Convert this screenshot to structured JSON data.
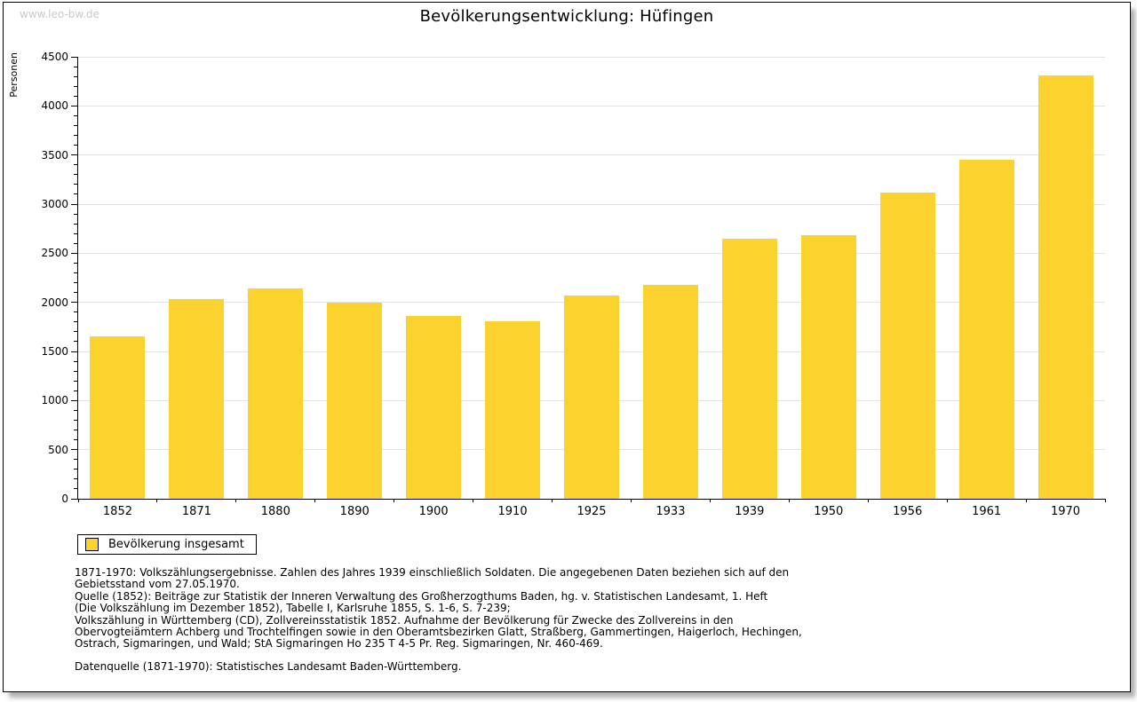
{
  "watermark": "www.leo-bw.de",
  "header": {
    "title": "Bevölkerungsentwicklung: Hüfingen"
  },
  "chart_data": {
    "type": "bar",
    "title": "Bevölkerungsentwicklung: Hüfingen",
    "xlabel": "",
    "ylabel": "Personen",
    "categories": [
      "1852",
      "1871",
      "1880",
      "1890",
      "1900",
      "1910",
      "1925",
      "1933",
      "1939",
      "1950",
      "1956",
      "1961",
      "1970"
    ],
    "values": [
      1650,
      2030,
      2140,
      1995,
      1860,
      1805,
      2065,
      2180,
      2650,
      2685,
      3115,
      3450,
      4310
    ],
    "ylim": [
      0,
      4500
    ],
    "ytick_step": 500,
    "yminor_step": 100,
    "grid": true,
    "legend_position": "bottom-left",
    "bar_color": "#fcd32e",
    "gridline_color": "#e3e3e3",
    "axis_color": "#000000"
  },
  "legend": {
    "items": [
      {
        "label": "Bevölkerung insgesamt",
        "color": "#fcd32e"
      }
    ]
  },
  "footnotes": [
    "1871-1970: Volkszählungsergebnisse. Zahlen des Jahres 1939 einschließlich Soldaten. Die angegebenen Daten beziehen sich auf den",
    "Gebietsstand vom 27.05.1970.",
    "Quelle (1852): Beiträge zur Statistik der Inneren Verwaltung des Großherzogthums Baden, hg. v. Statistischen Landesamt, 1. Heft",
    "(Die Volkszählung im Dezember 1852), Tabelle I, Karlsruhe 1855, S. 1-6, S. 7-239;",
    "Volkszählung in Württemberg (CD), Zollvereinsstatistik 1852. Aufnahme der Bevölkerung für Zwecke des Zollvereins in den",
    "Obervogteiämtern Achberg und Trochtelfingen sowie in den Oberamtsbezirken Glatt, Straßberg, Gammertingen, Haigerloch, Hechingen,",
    "Ostrach, Sigmaringen, und Wald; StA Sigmaringen Ho 235 T 4-5 Pr. Reg. Sigmaringen, Nr. 460-469."
  ],
  "datasource": "Datenquelle (1871-1970): Statistisches Landesamt Baden-Württemberg."
}
